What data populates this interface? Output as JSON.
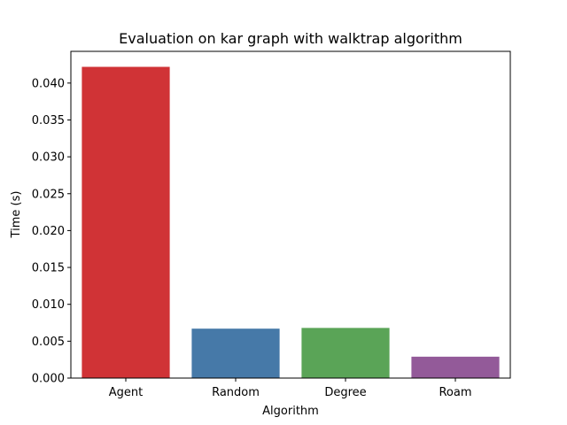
{
  "chart_data": {
    "type": "bar",
    "title": "Evaluation on kar graph with walktrap algorithm",
    "xlabel": "Algorithm",
    "ylabel": "Time (s)",
    "categories": [
      "Agent",
      "Random",
      "Degree",
      "Roam"
    ],
    "values": [
      0.0422,
      0.0067,
      0.0068,
      0.0029
    ],
    "colors": [
      "#d03336",
      "#4679a8",
      "#5aa457",
      "#935a99"
    ],
    "ylim": [
      0,
      0.0443
    ],
    "yticks": [
      0.0,
      0.005,
      0.01,
      0.015,
      0.02,
      0.025,
      0.03,
      0.035,
      0.04
    ],
    "ytick_labels": [
      "0.000",
      "0.005",
      "0.010",
      "0.015",
      "0.020",
      "0.025",
      "0.030",
      "0.035",
      "0.040"
    ],
    "grid": false,
    "legend": "none"
  }
}
